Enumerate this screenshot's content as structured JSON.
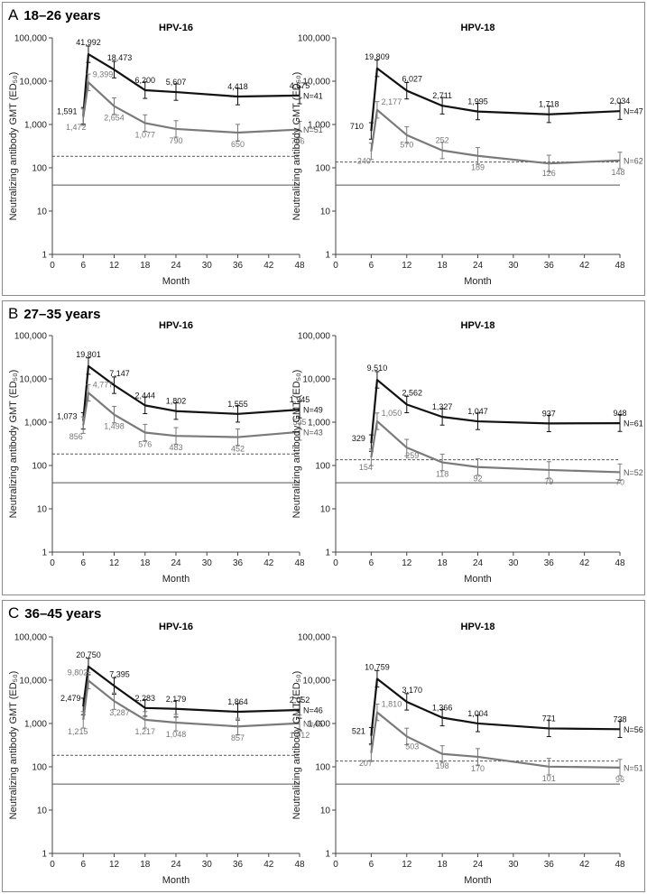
{
  "colors": {
    "black_series": "#111111",
    "gray_series": "#7a7a7a",
    "axis": "#444444",
    "ref_line": "#555555"
  },
  "x_axis_label": "Month",
  "y_axis_label": "Neutralizing antibody GMT (ED₅₀)",
  "panels": [
    {
      "letter": "A",
      "title": "18–26 years"
    },
    {
      "letter": "B",
      "title": "27–35 years"
    },
    {
      "letter": "C",
      "title": "36–45 years"
    }
  ],
  "chart_data": [
    {
      "type": "line",
      "panel": "A",
      "title": "HPV-16",
      "xlabel": "Month",
      "ylabel": "Neutralizing antibody GMT (ED₅₀)",
      "x_ticks": [
        "0",
        "6",
        "12",
        "18",
        "24",
        "30",
        "36",
        "42",
        "48"
      ],
      "y_ticks": [
        "1",
        "10",
        "100",
        "1,000",
        "10,000",
        "100,000"
      ],
      "ylim": [
        1,
        100000
      ],
      "xlim": [
        0,
        48
      ],
      "yscale": "log",
      "reference_lines": [
        {
          "style": "dashed",
          "value": 184
        },
        {
          "style": "solid",
          "value": 40
        }
      ],
      "series": [
        {
          "name": "black",
          "x": [
            6,
            7,
            12,
            18,
            24,
            36,
            48
          ],
          "values": [
            1591,
            41992,
            18473,
            6200,
            5607,
            4418,
            4675
          ],
          "labels": [
            "1,591",
            "41,992",
            "18,473",
            "6,200",
            "5,607",
            "4,418",
            "4,675"
          ],
          "n_label": "N=41"
        },
        {
          "name": "gray",
          "x": [
            6,
            7,
            12,
            18,
            24,
            36,
            48
          ],
          "values": [
            1472,
            9399,
            2654,
            1077,
            790,
            650,
            766
          ],
          "labels": [
            "1,472",
            "9,399",
            "2,654",
            "1,077",
            "790",
            "650",
            "766"
          ],
          "n_label": "N=51"
        }
      ]
    },
    {
      "type": "line",
      "panel": "A",
      "title": "HPV-18",
      "xlabel": "Month",
      "ylabel": "Neutralizing antibody GMT (ED₅₀)",
      "x_ticks": [
        "0",
        "6",
        "12",
        "18",
        "24",
        "30",
        "36",
        "42",
        "48"
      ],
      "y_ticks": [
        "1",
        "10",
        "100",
        "1,000",
        "10,000",
        "100,000"
      ],
      "ylim": [
        1,
        100000
      ],
      "xlim": [
        0,
        48
      ],
      "yscale": "log",
      "reference_lines": [
        {
          "style": "dashed",
          "value": 136
        },
        {
          "style": "solid",
          "value": 40
        }
      ],
      "series": [
        {
          "name": "black",
          "x": [
            6,
            7,
            12,
            18,
            24,
            36,
            48
          ],
          "values": [
            710,
            19809,
            6027,
            2711,
            1995,
            1718,
            2034
          ],
          "labels": [
            "710",
            "19,809",
            "6,027",
            "2,711",
            "1,995",
            "1,718",
            "2,034"
          ],
          "n_label": "N=47"
        },
        {
          "name": "gray",
          "x": [
            6,
            7,
            12,
            18,
            24,
            36,
            48
          ],
          "values": [
            240,
            2177,
            570,
            252,
            189,
            126,
            148
          ],
          "labels": [
            "240",
            "2,177",
            "570",
            "252",
            "189",
            "126",
            "148"
          ],
          "n_label": "N=62"
        }
      ]
    },
    {
      "type": "line",
      "panel": "B",
      "title": "HPV-16",
      "xlabel": "Month",
      "ylabel": "Neutralizing antibody GMT (ED₅₀)",
      "x_ticks": [
        "0",
        "6",
        "12",
        "18",
        "24",
        "30",
        "36",
        "42",
        "48"
      ],
      "y_ticks": [
        "1",
        "10",
        "100",
        "1,000",
        "10,000",
        "100,000"
      ],
      "ylim": [
        1,
        100000
      ],
      "xlim": [
        0,
        48
      ],
      "yscale": "log",
      "reference_lines": [
        {
          "style": "dashed",
          "value": 184
        },
        {
          "style": "solid",
          "value": 40
        }
      ],
      "series": [
        {
          "name": "black",
          "x": [
            6,
            7,
            12,
            18,
            24,
            36,
            48
          ],
          "values": [
            1073,
            19801,
            7147,
            2444,
            1802,
            1555,
            1945
          ],
          "labels": [
            "1,073",
            "19,801",
            "7,147",
            "2,444",
            "1,802",
            "1,555",
            "1,945"
          ],
          "n_label": "N=49"
        },
        {
          "name": "gray",
          "x": [
            6,
            7,
            12,
            18,
            24,
            36,
            48
          ],
          "values": [
            856,
            4777,
            1498,
            576,
            483,
            452,
            595
          ],
          "labels": [
            "856",
            "4,777",
            "1,498",
            "576",
            "483",
            "452",
            "595"
          ],
          "n_label": "N=43"
        }
      ]
    },
    {
      "type": "line",
      "panel": "B",
      "title": "HPV-18",
      "xlabel": "Month",
      "ylabel": "Neutralizing antibody GMT (ED₅₀)",
      "x_ticks": [
        "0",
        "6",
        "12",
        "18",
        "24",
        "30",
        "36",
        "42",
        "48"
      ],
      "y_ticks": [
        "1",
        "10",
        "100",
        "1,000",
        "10,000",
        "100,000"
      ],
      "ylim": [
        1,
        100000
      ],
      "xlim": [
        0,
        48
      ],
      "yscale": "log",
      "reference_lines": [
        {
          "style": "dashed",
          "value": 136
        },
        {
          "style": "solid",
          "value": 40
        }
      ],
      "series": [
        {
          "name": "black",
          "x": [
            6,
            7,
            12,
            18,
            24,
            36,
            48
          ],
          "values": [
            329,
            9510,
            2562,
            1327,
            1047,
            937,
            948
          ],
          "labels": [
            "329",
            "9,510",
            "2,562",
            "1,327",
            "1,047",
            "937",
            "948"
          ],
          "n_label": "N=61"
        },
        {
          "name": "gray",
          "x": [
            6,
            7,
            12,
            18,
            24,
            36,
            48
          ],
          "values": [
            154,
            1050,
            259,
            118,
            92,
            79,
            70
          ],
          "labels": [
            "154",
            "1,050",
            "259",
            "118",
            "92",
            "79",
            "70"
          ],
          "n_label": "N=52"
        }
      ]
    },
    {
      "type": "line",
      "panel": "C",
      "title": "HPV-16",
      "xlabel": "Month",
      "ylabel": "Neutralizing antibody GMT (ED₅₀)",
      "x_ticks": [
        "0",
        "6",
        "12",
        "18",
        "24",
        "30",
        "36",
        "42",
        "48"
      ],
      "y_ticks": [
        "1",
        "10",
        "100",
        "1,000",
        "10,000",
        "100,000"
      ],
      "ylim": [
        1,
        100000
      ],
      "xlim": [
        0,
        48
      ],
      "yscale": "log",
      "reference_lines": [
        {
          "style": "dashed",
          "value": 184
        },
        {
          "style": "solid",
          "value": 40
        }
      ],
      "series": [
        {
          "name": "black",
          "x": [
            6,
            7,
            12,
            18,
            24,
            36,
            48
          ],
          "values": [
            2479,
            20750,
            7395,
            2283,
            2179,
            1864,
            2052
          ],
          "labels": [
            "2,479",
            "20,750",
            "7,395",
            "2,283",
            "2,179",
            "1,864",
            "2,052"
          ],
          "n_label": "N=46"
        },
        {
          "name": "gray",
          "x": [
            6,
            7,
            12,
            18,
            24,
            36,
            48
          ],
          "values": [
            1215,
            9802,
            3287,
            1217,
            1048,
            857,
            1012
          ],
          "labels": [
            "1,215",
            "9,802",
            "3,287",
            "1,217",
            "1,048",
            "857",
            "1,012"
          ],
          "n_label": "N=45"
        }
      ]
    },
    {
      "type": "line",
      "panel": "C",
      "title": "HPV-18",
      "xlabel": "Month",
      "ylabel": "Neutralizing antibody GMT (ED₅₀)",
      "x_ticks": [
        "0",
        "6",
        "12",
        "18",
        "24",
        "30",
        "36",
        "42",
        "48"
      ],
      "y_ticks": [
        "1",
        "10",
        "100",
        "1,000",
        "10,000",
        "100,000"
      ],
      "ylim": [
        1,
        100000
      ],
      "xlim": [
        0,
        48
      ],
      "yscale": "log",
      "reference_lines": [
        {
          "style": "dashed",
          "value": 136
        },
        {
          "style": "solid",
          "value": 40
        }
      ],
      "series": [
        {
          "name": "black",
          "x": [
            6,
            7,
            12,
            18,
            24,
            36,
            48
          ],
          "values": [
            521,
            10759,
            3170,
            1366,
            1004,
            771,
            738
          ],
          "labels": [
            "521",
            "10,759",
            "3,170",
            "1,366",
            "1,004",
            "771",
            "738"
          ],
          "n_label": "N=56"
        },
        {
          "name": "gray",
          "x": [
            6,
            7,
            12,
            18,
            24,
            36,
            48
          ],
          "values": [
            207,
            1810,
            503,
            198,
            170,
            101,
            96
          ],
          "labels": [
            "207",
            "1,810",
            "503",
            "198",
            "170",
            "101",
            "96"
          ],
          "n_label": "N=51"
        }
      ]
    }
  ]
}
